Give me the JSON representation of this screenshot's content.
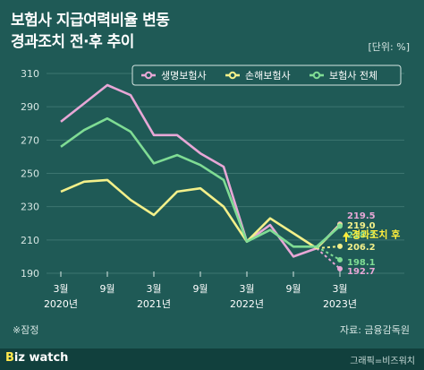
{
  "header": {
    "title_line1": "보험사 지급여력비율 변동",
    "title_line2": "경과조치 전·후 추이",
    "unit": "[단위: %]"
  },
  "note": "※잠정",
  "source": "자료: 금융감독원",
  "footer": {
    "logo_b": "B",
    "logo_rest": "iz watch",
    "credit": "그래픽=비즈워치"
  },
  "chart_data": {
    "type": "line",
    "x": [
      "2020-03",
      "2020-06",
      "2020-09",
      "2020-12",
      "2021-03",
      "2021-06",
      "2021-09",
      "2021-12",
      "2022-03",
      "2022-06",
      "2022-09",
      "2022-12",
      "2023-03"
    ],
    "x_tick_labels": [
      {
        "month": "3월",
        "year": "2020년",
        "index": 0
      },
      {
        "month": "9월",
        "year": "",
        "index": 2
      },
      {
        "month": "3월",
        "year": "2021년",
        "index": 4
      },
      {
        "month": "9월",
        "year": "",
        "index": 6
      },
      {
        "month": "3월",
        "year": "2022년",
        "index": 8
      },
      {
        "month": "9월",
        "year": "",
        "index": 10
      },
      {
        "month": "3월",
        "year": "2023년",
        "index": 12
      }
    ],
    "ylim": [
      190,
      310
    ],
    "y_ticks": [
      190,
      210,
      230,
      250,
      270,
      290,
      310
    ],
    "grid": true,
    "legend_position": "top-right",
    "series": [
      {
        "name": "생명보험사",
        "color": "#e7a7d6",
        "values": [
          281,
          292,
          303,
          297,
          273,
          273,
          262,
          254,
          209,
          219,
          200,
          205,
          null
        ],
        "after_values": {
          "post": 219.5,
          "pre": 192.7
        }
      },
      {
        "name": "손해보험사",
        "color": "#f3f08a",
        "values": [
          239,
          245,
          246,
          234,
          225,
          239,
          241,
          230,
          209,
          223,
          214,
          205,
          null
        ],
        "after_values": {
          "post": 219.0,
          "pre": 206.2
        }
      },
      {
        "name": "보험사 전체",
        "color": "#7fdc94",
        "values": [
          266,
          276,
          283,
          275,
          256,
          261,
          255,
          246,
          209,
          216,
          206,
          206,
          null
        ],
        "after_values": {
          "post": 218.3,
          "pre": 198.1
        }
      }
    ],
    "annotation": "경과조치 후",
    "value_labels": [
      "219.5",
      "219.0",
      "218.3",
      "206.2",
      "198.1",
      "192.7"
    ]
  }
}
